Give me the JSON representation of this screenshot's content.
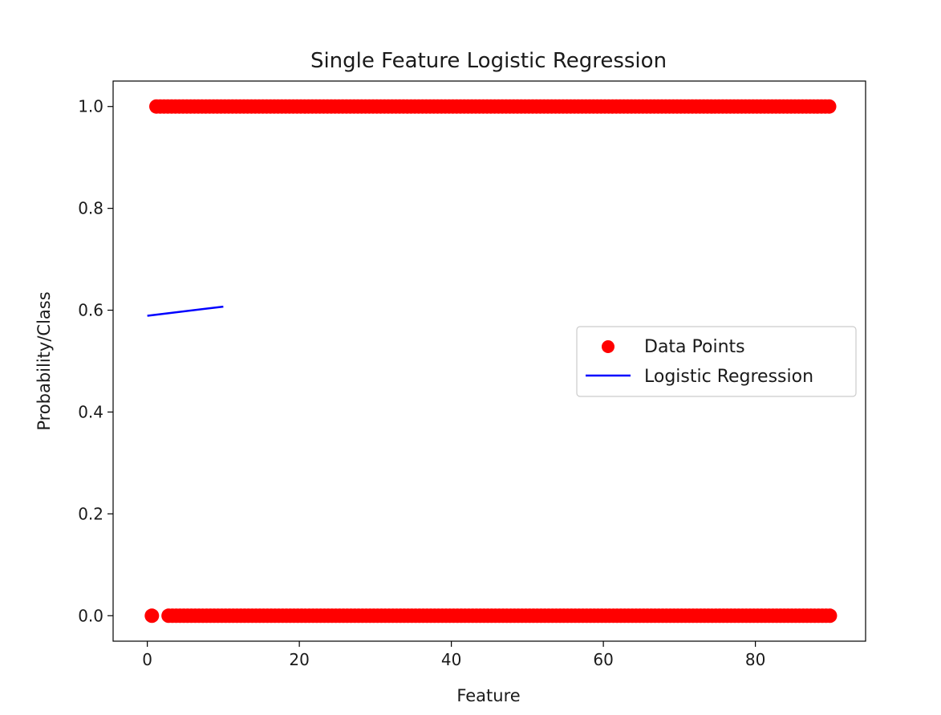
{
  "chart_data": {
    "type": "scatter",
    "title": "Single Feature Logistic Regression",
    "xlabel": "Feature",
    "ylabel": "Probability/Class",
    "xlim": [
      -4.5,
      94.5
    ],
    "ylim": [
      -0.05,
      1.05
    ],
    "xticks": [
      0,
      20,
      40,
      60,
      80
    ],
    "yticks": [
      0.0,
      0.2,
      0.4,
      0.6,
      0.8,
      1.0
    ],
    "grid": false,
    "legend_position": "center-right",
    "series": [
      {
        "name": "Data Points",
        "kind": "scatter",
        "color": "#ff0000",
        "class1_range": [
          1.2,
          90.0
        ],
        "class0_isolated": [
          0.6
        ],
        "class0_range": [
          2.8,
          90.0
        ],
        "class1_y": 1.0,
        "class0_y": 0.0
      },
      {
        "name": "Logistic Regression",
        "kind": "line",
        "color": "#0000ff",
        "x": [
          0,
          10
        ],
        "y": [
          0.589,
          0.607
        ]
      }
    ]
  }
}
